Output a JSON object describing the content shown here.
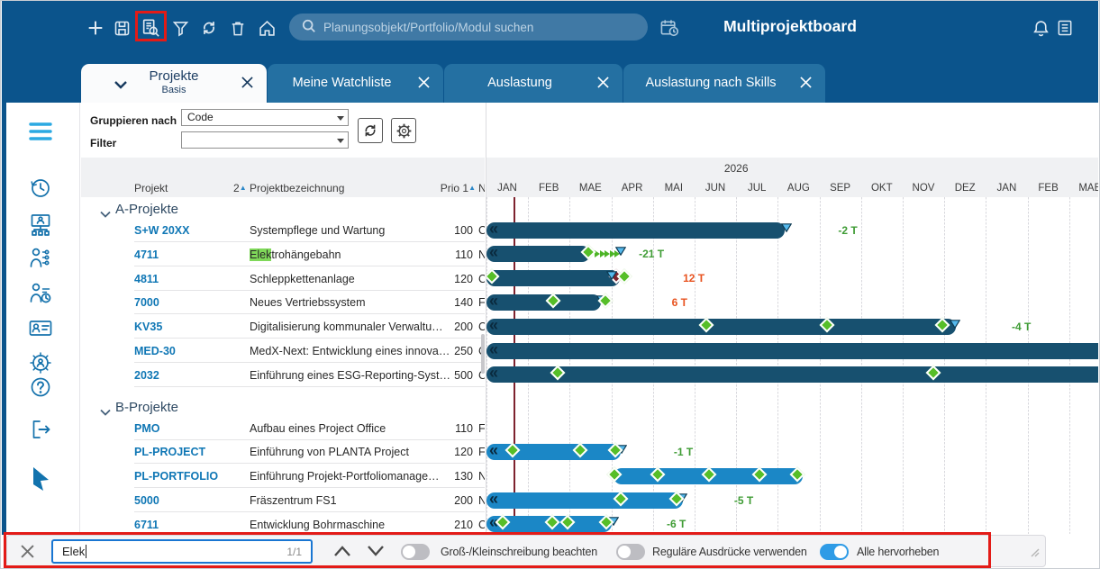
{
  "toolbar": {
    "icons": [
      {
        "name": "add",
        "glyph": "plus"
      },
      {
        "name": "save",
        "glyph": "save"
      },
      {
        "name": "module-search",
        "glyph": "doc-search",
        "highlighted": true
      },
      {
        "name": "filter",
        "glyph": "funnel"
      },
      {
        "name": "refresh",
        "glyph": "refresh"
      },
      {
        "name": "delete",
        "glyph": "trash"
      },
      {
        "name": "home",
        "glyph": "home"
      }
    ],
    "search": {
      "placeholder": "Planungsobjekt/Portfolio/Modul suchen"
    },
    "calendar_icon": "calendar-clock",
    "title": "Multiprojektboard",
    "right_icons": [
      {
        "name": "notifications",
        "glyph": "bell"
      },
      {
        "name": "protocol",
        "glyph": "list"
      }
    ]
  },
  "tabs": [
    {
      "label": "Projekte",
      "sublabel": "Basis",
      "active": true
    },
    {
      "label": "Meine Watchliste",
      "active": false
    },
    {
      "label": "Auslastung",
      "active": false
    },
    {
      "label": "Auslastung nach Skills",
      "active": false
    }
  ],
  "sidebar": {
    "items": [
      "menu",
      "history",
      "project-structure",
      "roles-structure",
      "resource-scheduling",
      "id-card",
      "user-settings",
      "help",
      "logout",
      "planta-logo"
    ]
  },
  "controls": {
    "group_label": "Gruppieren nach",
    "group_value": "Code",
    "filter_label": "Filter",
    "filter_value": ""
  },
  "table": {
    "col_project": "Projekt",
    "col_name": "Projektbezeichnung",
    "col_name_sort": "2",
    "col_prio": "Prio 1",
    "col_clipped": "N"
  },
  "chart_data": {
    "type": "gantt",
    "year_label": "2026",
    "months": [
      "JAN",
      "FEB",
      "MAE",
      "APR",
      "MAI",
      "JUN",
      "JUL",
      "AUG",
      "SEP",
      "OKT",
      "NOV",
      "DEZ",
      "JAN",
      "FEB",
      "MAE"
    ],
    "axis_note": "bar positions are months from 2026-01-01",
    "today": 0.64,
    "groups": [
      {
        "name": "A-Projekte",
        "rows": [
          {
            "code": "S+W 20XX",
            "name": "Systempflege und Wartung",
            "prio": "100",
            "clipped": "C",
            "bar": {
              "start": 0,
              "end": 7.16,
              "level": "A",
              "clip_left": true,
              "chevrons": true
            },
            "end_triangle": 7.2,
            "label": {
              "text": "-2 T",
              "color": "green",
              "at": 8.45
            }
          },
          {
            "code": "4711",
            "name": "Elektrohängebahn",
            "prio": "110",
            "clipped": "N",
            "highlight": "Elek",
            "bar": {
              "start": 0,
              "end": 2.49,
              "level": "A",
              "clip_left": true,
              "chevrons": true
            },
            "diamonds": [
              2.49
            ],
            "arrows": {
              "from": 2.6,
              "to": 3.1
            },
            "end_triangle": 3.22,
            "label": {
              "text": "-21 T",
              "color": "green",
              "at": 3.66
            }
          },
          {
            "code": "4811",
            "name": "Schleppkettenanlage",
            "prio": "120",
            "clipped": "C",
            "bar": {
              "start": 0,
              "end": 3.2,
              "level": "A",
              "clip_left": true,
              "chevrons": false
            },
            "diamonds": [
              0.17,
              3.35
            ],
            "maroon": 3.16,
            "end_triangle": 3.0,
            "label": {
              "text": "12 T",
              "color": "red",
              "at": 4.72
            }
          },
          {
            "code": "7000",
            "name": "Neues Vertriebssystem",
            "prio": "140",
            "clipped": "F",
            "bar": {
              "start": 0,
              "end": 2.75,
              "level": "A",
              "clip_left": true,
              "chevrons": true
            },
            "diamonds": [
              1.65,
              2.9
            ],
            "end_triangle": 2.76,
            "label": {
              "text": "6 T",
              "color": "red",
              "at": 4.45
            }
          },
          {
            "code": "KV35",
            "name": "Digitalisierung kommunaler Verwaltu…",
            "prio": "200",
            "clipped": "C",
            "bar": {
              "start": 0,
              "end": 11.28,
              "level": "A",
              "clip_left": true,
              "chevrons": true
            },
            "diamonds": [
              5.32,
              8.23,
              11.0
            ],
            "end_triangle": 11.25,
            "label": {
              "text": "-4 T",
              "color": "green",
              "at": 12.62
            }
          },
          {
            "code": "MED-30",
            "name": "MedX-Next: Entwicklung eines innova…",
            "prio": "250",
            "clipped": "C",
            "bar": {
              "start": 0,
              "end": 15,
              "level": "A",
              "clip_left": true,
              "clip_right": true,
              "chevrons": true
            }
          },
          {
            "code": "2032",
            "name": "Einführung eines ESG-Reporting-Syst…",
            "prio": "500",
            "clipped": "C",
            "bar": {
              "start": 0,
              "end": 15,
              "level": "A",
              "clip_left": true,
              "clip_right": true,
              "chevrons": true
            },
            "diamonds": [
              1.75,
              10.78
            ]
          }
        ]
      },
      {
        "name": "B-Projekte",
        "rows": [
          {
            "code": "PMO",
            "name": "Aufbau eines Project Office",
            "prio": "110",
            "clipped": "F"
          },
          {
            "code": "PL-PROJECT",
            "name": "Einführung von PLANTA Project",
            "prio": "120",
            "clipped": "F",
            "bar": {
              "start": 0,
              "end": 3.23,
              "level": "B",
              "clip_left": true,
              "chevrons": true
            },
            "diamonds": [
              0.67,
              2.29,
              3.14
            ],
            "end_triangle": 3.25,
            "label": {
              "text": "-1 T",
              "color": "green",
              "at": 4.5
            }
          },
          {
            "code": "PL-PORTFOLIO",
            "name": "Einführung Projekt-Portfoliomanage…",
            "prio": "130",
            "clipped": "N",
            "bar": {
              "start": 3.05,
              "end": 7.6,
              "level": "B"
            },
            "diamonds": [
              3.12,
              4.15,
              5.4,
              6.6,
              7.5
            ]
          },
          {
            "code": "5000",
            "name": "Fräszentrum FS1",
            "prio": "200",
            "clipped": "N",
            "bar": {
              "start": 0,
              "end": 4.72,
              "level": "B",
              "clip_left": true,
              "chevrons": true
            },
            "diamonds": [
              3.27,
              4.6
            ],
            "end_triangle": 4.7,
            "label": {
              "text": "-5 T",
              "color": "green",
              "at": 5.95
            }
          },
          {
            "code": "6711",
            "name": "Entwicklung Bohrmaschine",
            "prio": "210",
            "clipped": "C",
            "bar": {
              "start": 0,
              "end": 3.0,
              "level": "B",
              "clip_left": true,
              "chevrons": true
            },
            "diamonds": [
              0.43,
              1.62,
              2.0,
              2.92
            ],
            "end_triangle": 3.05,
            "label": {
              "text": "-6 T",
              "color": "green",
              "at": 4.33
            }
          }
        ]
      }
    ],
    "colors": {
      "bar_a": "#17506F",
      "bar_b": "#1B87C6",
      "diamond": "#56BE28",
      "triangle": "#55B9EC",
      "today_line": "#7E222E",
      "label_green": "#3F9C35",
      "label_red": "#E85320"
    }
  },
  "findbar": {
    "query": "Elek",
    "count": "1/1",
    "toggles": [
      {
        "label": "Groß-/Kleinschreibung beachten",
        "on": false
      },
      {
        "label": "Reguläre Ausdrücke verwenden",
        "on": false
      },
      {
        "label": "Alle hervorheben",
        "on": true
      }
    ]
  },
  "annotation_color": "#E31B17"
}
